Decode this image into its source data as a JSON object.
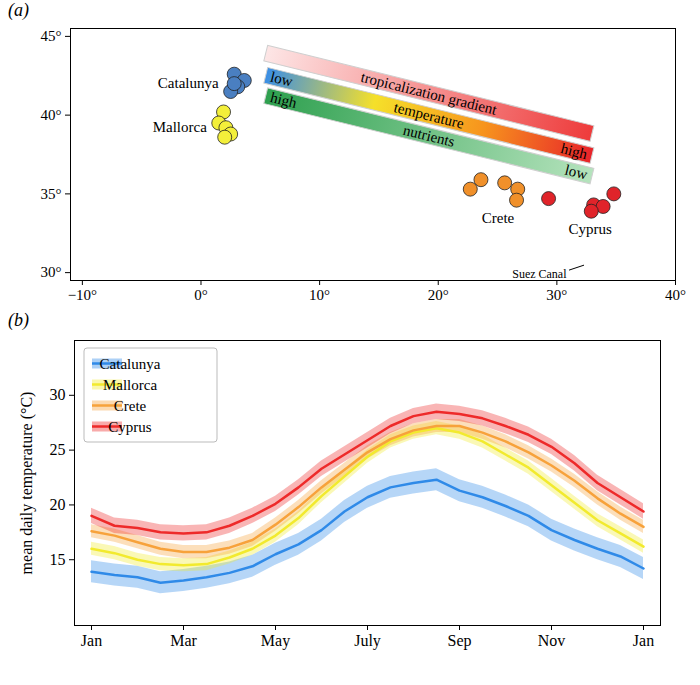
{
  "chart_data": [
    {
      "type": "scatter",
      "panel": "(a)",
      "xlim": [
        -11,
        40
      ],
      "ylim": [
        29.5,
        45.5
      ],
      "xticks": [
        {
          "value": -10,
          "label": "−10°"
        },
        {
          "value": 0,
          "label": "0°"
        },
        {
          "value": 10,
          "label": "10°"
        },
        {
          "value": 20,
          "label": "20°"
        },
        {
          "value": 30,
          "label": "30°"
        },
        {
          "value": 40,
          "label": "40°"
        }
      ],
      "yticks": [
        {
          "value": 30,
          "label": "30°"
        },
        {
          "value": 35,
          "label": "35°"
        },
        {
          "value": 40,
          "label": "40°"
        },
        {
          "value": 45,
          "label": "45°"
        }
      ],
      "series": [
        {
          "name": "Catalunya",
          "color": "#4a7fc1",
          "x": [
            2.8,
            3.65,
            3.1,
            2.5,
            2.8
          ],
          "values": [
            42.6,
            42.2,
            41.8,
            41.5,
            42.0
          ]
        },
        {
          "name": "Mallorca",
          "color": "#f3ef3a",
          "x": [
            1.9,
            1.5,
            2.1,
            2.5,
            2.0
          ],
          "values": [
            40.2,
            39.5,
            39.2,
            38.8,
            38.6
          ]
        },
        {
          "name": "Crete",
          "color": "#f0902a",
          "x": [
            22.7,
            23.6,
            25.6,
            26.7,
            26.6
          ],
          "values": [
            35.3,
            35.9,
            35.7,
            35.3,
            34.6
          ]
        },
        {
          "name": "Cyprus",
          "color": "#e0242a",
          "x": [
            29.3,
            33.1,
            33.9,
            34.8,
            32.9
          ],
          "values": [
            34.7,
            34.3,
            34.2,
            35.0,
            33.9
          ]
        }
      ],
      "gradients": [
        {
          "label": "tropicalization gradient",
          "colors": [
            "#fde6e6",
            "#ee3b3b"
          ]
        },
        {
          "label": "temperature",
          "start": "low",
          "end": "high",
          "colors": [
            "#3a8ee6",
            "#f5e02a",
            "#f7941d",
            "#e8232a"
          ]
        },
        {
          "label": "nutrients",
          "start": "high",
          "end": "low",
          "colors": [
            "#2ea04f",
            "#b5e3bd"
          ]
        }
      ],
      "annotations": [
        {
          "text": "Suez Canal",
          "x": 32.5,
          "y": 30.0
        }
      ]
    },
    {
      "type": "line",
      "panel": "(b)",
      "y_label": "mean daily temperature (°C)",
      "categories": [
        "Jan",
        null,
        null,
        null,
        "Mar",
        null,
        null,
        null,
        "May",
        null,
        null,
        null,
        "July",
        null,
        null,
        null,
        "Sep",
        null,
        null,
        null,
        "Nov",
        null,
        null,
        null,
        "Jan"
      ],
      "ylim": [
        9,
        35
      ],
      "yticks": [
        15,
        20,
        25,
        30
      ],
      "legend": "top-left",
      "series": [
        {
          "name": "Catalunya",
          "color": "#2f8ae8",
          "values": [
            13.9,
            13.6,
            13.4,
            12.9,
            13.1,
            13.4,
            13.8,
            14.4,
            15.5,
            16.4,
            17.7,
            19.4,
            20.7,
            21.6,
            22.0,
            22.3,
            21.3,
            20.7,
            19.9,
            19.0,
            17.7,
            16.8,
            16.0,
            15.3,
            14.2
          ],
          "lower": [
            12.9,
            12.6,
            12.4,
            11.9,
            12.1,
            12.4,
            12.8,
            13.4,
            14.5,
            15.4,
            16.7,
            18.4,
            19.7,
            20.6,
            21.0,
            21.3,
            20.3,
            19.7,
            18.9,
            18.0,
            16.7,
            15.8,
            15.0,
            14.3,
            13.2
          ],
          "upper": [
            14.9,
            14.6,
            14.4,
            13.9,
            14.1,
            14.4,
            14.8,
            15.4,
            16.5,
            17.4,
            18.7,
            20.4,
            21.7,
            22.6,
            23.0,
            23.3,
            22.3,
            21.7,
            20.9,
            20.0,
            18.7,
            17.8,
            17.0,
            16.3,
            15.2
          ]
        },
        {
          "name": "Mallorca",
          "color": "#f2ea2e",
          "values": [
            16.0,
            15.6,
            15.0,
            14.6,
            14.5,
            14.6,
            15.2,
            16.0,
            17.2,
            18.8,
            20.8,
            22.6,
            24.4,
            25.8,
            26.6,
            27.0,
            26.6,
            25.8,
            24.6,
            23.4,
            21.8,
            20.2,
            18.6,
            17.4,
            16.2
          ],
          "lower": [
            15.4,
            15.0,
            14.4,
            14.0,
            13.9,
            14.0,
            14.6,
            15.4,
            16.6,
            18.2,
            20.2,
            22.0,
            23.8,
            25.2,
            26.0,
            26.4,
            26.0,
            25.2,
            24.0,
            22.8,
            21.2,
            19.6,
            18.0,
            16.8,
            15.6
          ],
          "upper": [
            16.6,
            16.2,
            15.6,
            15.2,
            15.1,
            15.2,
            15.8,
            16.6,
            17.8,
            19.4,
            21.4,
            23.2,
            25.0,
            26.4,
            27.2,
            27.6,
            27.2,
            26.4,
            25.2,
            24.0,
            22.4,
            20.8,
            19.2,
            18.0,
            16.8
          ]
        },
        {
          "name": "Crete",
          "color": "#f7a23b",
          "values": [
            17.6,
            17.2,
            16.6,
            16.0,
            15.7,
            15.7,
            16.1,
            16.8,
            18.2,
            19.8,
            21.6,
            23.2,
            24.8,
            26.0,
            26.8,
            27.2,
            27.2,
            26.6,
            25.8,
            24.8,
            23.6,
            22.2,
            20.6,
            19.2,
            18.0
          ],
          "lower": [
            17.0,
            16.6,
            16.0,
            15.4,
            15.1,
            15.1,
            15.5,
            16.2,
            17.6,
            19.2,
            21.0,
            22.6,
            24.2,
            25.4,
            26.2,
            26.6,
            26.6,
            26.0,
            25.2,
            24.2,
            23.0,
            21.6,
            20.0,
            18.6,
            17.4
          ],
          "upper": [
            18.2,
            17.8,
            17.2,
            16.6,
            16.3,
            16.3,
            16.7,
            17.4,
            18.8,
            20.4,
            22.2,
            23.8,
            25.4,
            26.6,
            27.4,
            27.8,
            27.8,
            27.2,
            26.4,
            25.4,
            24.2,
            22.8,
            21.2,
            19.8,
            18.6
          ]
        },
        {
          "name": "Cyprus",
          "color": "#ee2a2a",
          "values": [
            19.0,
            18.1,
            17.9,
            17.5,
            17.4,
            17.5,
            18.1,
            19.0,
            20.1,
            21.6,
            23.3,
            24.6,
            25.9,
            27.2,
            28.1,
            28.5,
            28.3,
            27.9,
            27.2,
            26.4,
            25.3,
            23.8,
            22.0,
            20.7,
            19.4
          ],
          "lower": [
            18.3,
            17.4,
            17.2,
            16.8,
            16.7,
            16.8,
            17.4,
            18.3,
            19.4,
            20.9,
            22.6,
            23.9,
            25.2,
            26.5,
            27.4,
            27.8,
            27.6,
            27.2,
            26.5,
            25.7,
            24.6,
            23.1,
            21.3,
            20.0,
            18.7
          ],
          "upper": [
            19.7,
            18.8,
            18.6,
            18.2,
            18.1,
            18.2,
            18.8,
            19.7,
            20.8,
            22.3,
            24.0,
            25.3,
            26.6,
            27.9,
            28.8,
            29.2,
            29.0,
            28.6,
            27.9,
            27.1,
            26.0,
            24.5,
            22.7,
            21.4,
            20.1
          ]
        }
      ]
    }
  ]
}
